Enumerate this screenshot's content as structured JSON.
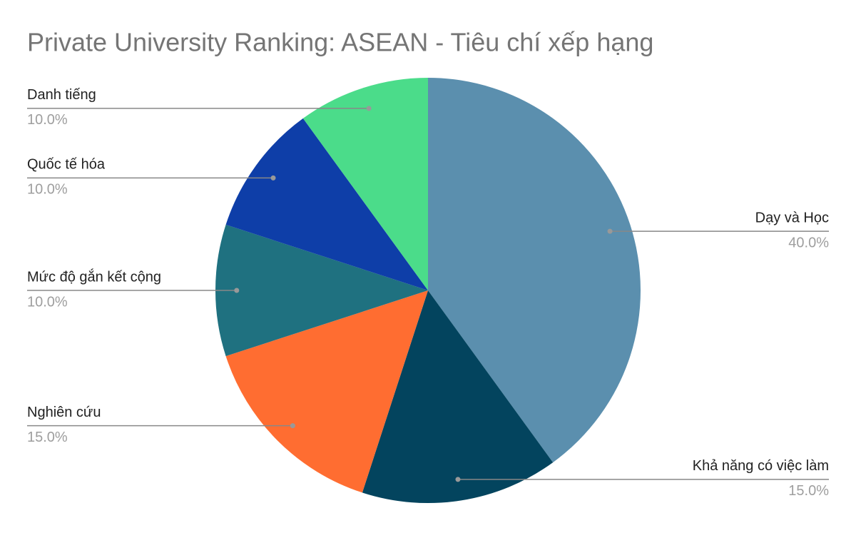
{
  "chart_data": {
    "type": "pie",
    "title": "Private University Ranking: ASEAN - Tiêu chí xếp hạng",
    "categories": [
      "Dạy và Học",
      "Khả năng có việc làm",
      "Nghiên cứu",
      "Mức độ gắn kết cộng",
      "Quốc tế hóa",
      "Danh tiếng"
    ],
    "values": [
      40,
      15,
      15,
      10,
      10,
      10
    ],
    "value_labels": [
      "40.0%",
      "15.0%",
      "15.0%",
      "10.0%",
      "10.0%",
      "10.0%"
    ],
    "colors": [
      "#5b8fae",
      "#03445e",
      "#ff6d31",
      "#1f7180",
      "#0e3ea8",
      "#4bdc8a"
    ]
  }
}
